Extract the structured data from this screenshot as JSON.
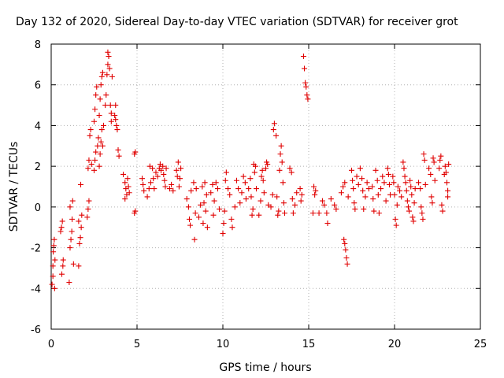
{
  "chart_data": {
    "type": "scatter",
    "title": "Day 132 of 2020, Sidereal Day-to-day VTEC variation (SDTVAR) for receiver grot",
    "xlabel": "GPS time / hours",
    "ylabel": "SDTVAR / TECUs",
    "xlim": [
      0,
      25
    ],
    "ylim": [
      -6,
      8
    ],
    "xticks": [
      "0",
      "5",
      "10",
      "15",
      "20",
      "25"
    ],
    "yticks": [
      "-6",
      "-4",
      "-2",
      "0",
      "2",
      "4",
      "6",
      "8"
    ],
    "grid": true,
    "marker": "+",
    "color": "#e00000",
    "series": [
      {
        "name": "SDTVAR",
        "points": [
          [
            0.05,
            -3.8
          ],
          [
            0.1,
            -3.4
          ],
          [
            0.1,
            -2.9
          ],
          [
            0.12,
            -2.2
          ],
          [
            0.15,
            -1.9
          ],
          [
            0.18,
            -1.6
          ],
          [
            0.2,
            -4.0
          ],
          [
            0.22,
            -2.6
          ],
          [
            0.55,
            -1.2
          ],
          [
            0.6,
            -1.0
          ],
          [
            0.65,
            -0.7
          ],
          [
            0.62,
            -3.3
          ],
          [
            0.68,
            -2.9
          ],
          [
            0.7,
            -2.6
          ],
          [
            1.05,
            -3.7
          ],
          [
            1.1,
            -2.0
          ],
          [
            1.15,
            -1.6
          ],
          [
            1.2,
            -1.2
          ],
          [
            1.22,
            -0.6
          ],
          [
            1.25,
            0.3
          ],
          [
            1.1,
            0.0
          ],
          [
            1.3,
            -2.8
          ],
          [
            1.6,
            -2.9
          ],
          [
            1.65,
            -1.8
          ],
          [
            1.7,
            -1.5
          ],
          [
            1.75,
            -1.0
          ],
          [
            1.72,
            1.1
          ],
          [
            1.6,
            -0.7
          ],
          [
            1.78,
            -0.4
          ],
          [
            2.1,
            -0.5
          ],
          [
            2.15,
            -0.1
          ],
          [
            2.2,
            0.3
          ],
          [
            2.15,
            1.9
          ],
          [
            2.2,
            2.3
          ],
          [
            2.25,
            3.5
          ],
          [
            2.3,
            3.8
          ],
          [
            2.35,
            2.1
          ],
          [
            2.5,
            1.8
          ],
          [
            2.55,
            2.3
          ],
          [
            2.6,
            2.7
          ],
          [
            2.5,
            4.2
          ],
          [
            2.55,
            4.8
          ],
          [
            2.6,
            5.5
          ],
          [
            2.65,
            5.9
          ],
          [
            2.7,
            3.0
          ],
          [
            2.75,
            3.4
          ],
          [
            2.8,
            2.0
          ],
          [
            2.85,
            2.6
          ],
          [
            2.9,
            3.2
          ],
          [
            2.95,
            3.8
          ],
          [
            2.8,
            4.5
          ],
          [
            2.85,
            5.3
          ],
          [
            2.9,
            6.0
          ],
          [
            2.95,
            6.4
          ],
          [
            3.0,
            6.6
          ],
          [
            3.0,
            3.0
          ],
          [
            3.05,
            4.0
          ],
          [
            3.15,
            5.0
          ],
          [
            3.2,
            5.5
          ],
          [
            3.25,
            6.5
          ],
          [
            3.3,
            7.0
          ],
          [
            3.35,
            7.4
          ],
          [
            3.3,
            7.6
          ],
          [
            3.4,
            6.8
          ],
          [
            3.45,
            5.0
          ],
          [
            3.5,
            4.6
          ],
          [
            3.55,
            6.4
          ],
          [
            3.5,
            4.2
          ],
          [
            3.7,
            4.5
          ],
          [
            3.75,
            5.0
          ],
          [
            3.8,
            4.0
          ],
          [
            3.85,
            3.8
          ],
          [
            3.9,
            2.8
          ],
          [
            3.95,
            2.5
          ],
          [
            3.75,
            4.3
          ],
          [
            4.2,
            1.6
          ],
          [
            4.3,
            1.2
          ],
          [
            4.35,
            0.9
          ],
          [
            4.4,
            0.6
          ],
          [
            4.45,
            1.4
          ],
          [
            4.5,
            1.0
          ],
          [
            4.55,
            0.7
          ],
          [
            4.3,
            0.4
          ],
          [
            4.85,
            2.6
          ],
          [
            4.9,
            2.7
          ],
          [
            4.85,
            -0.3
          ],
          [
            4.9,
            -0.2
          ],
          [
            5.3,
            1.4
          ],
          [
            5.35,
            1.1
          ],
          [
            5.4,
            0.8
          ],
          [
            5.6,
            0.5
          ],
          [
            5.7,
            0.9
          ],
          [
            5.8,
            1.2
          ],
          [
            5.75,
            2.0
          ],
          [
            5.9,
            1.9
          ],
          [
            5.95,
            1.4
          ],
          [
            6.0,
            0.9
          ],
          [
            6.1,
            1.7
          ],
          [
            6.2,
            1.5
          ],
          [
            6.3,
            1.9
          ],
          [
            6.35,
            2.1
          ],
          [
            6.4,
            1.8
          ],
          [
            6.5,
            2.0
          ],
          [
            6.55,
            1.6
          ],
          [
            6.6,
            1.3
          ],
          [
            6.65,
            1.0
          ],
          [
            6.7,
            1.9
          ],
          [
            6.9,
            0.9
          ],
          [
            7.0,
            1.1
          ],
          [
            7.1,
            0.8
          ],
          [
            7.3,
            1.8
          ],
          [
            7.35,
            1.5
          ],
          [
            7.4,
            2.2
          ],
          [
            7.45,
            1.0
          ],
          [
            7.5,
            1.4
          ],
          [
            7.55,
            1.9
          ],
          [
            7.9,
            0.4
          ],
          [
            8.0,
            0.0
          ],
          [
            8.05,
            -0.6
          ],
          [
            8.1,
            -0.9
          ],
          [
            8.15,
            0.8
          ],
          [
            8.3,
            1.2
          ],
          [
            8.35,
            -1.6
          ],
          [
            8.4,
            -0.3
          ],
          [
            8.45,
            0.9
          ],
          [
            8.6,
            -0.5
          ],
          [
            8.7,
            0.1
          ],
          [
            8.8,
            1.0
          ],
          [
            8.85,
            -0.8
          ],
          [
            8.9,
            0.2
          ],
          [
            8.95,
            1.2
          ],
          [
            9.0,
            -0.2
          ],
          [
            9.05,
            0.6
          ],
          [
            9.1,
            -1.0
          ],
          [
            9.3,
            0.7
          ],
          [
            9.4,
            1.1
          ],
          [
            9.45,
            -0.4
          ],
          [
            9.5,
            0.3
          ],
          [
            9.6,
            1.2
          ],
          [
            9.7,
            0.9
          ],
          [
            9.8,
            -0.1
          ],
          [
            10.0,
            -1.3
          ],
          [
            10.05,
            -0.8
          ],
          [
            10.1,
            -0.2
          ],
          [
            10.15,
            1.3
          ],
          [
            10.2,
            1.7
          ],
          [
            10.3,
            0.9
          ],
          [
            10.4,
            0.6
          ],
          [
            10.5,
            -0.6
          ],
          [
            10.55,
            -1.0
          ],
          [
            10.7,
            0.0
          ],
          [
            10.8,
            1.3
          ],
          [
            10.9,
            0.9
          ],
          [
            11.0,
            0.2
          ],
          [
            11.1,
            0.7
          ],
          [
            11.2,
            1.5
          ],
          [
            11.3,
            1.2
          ],
          [
            11.35,
            0.4
          ],
          [
            11.5,
            0.9
          ],
          [
            11.6,
            1.4
          ],
          [
            11.65,
            0.5
          ],
          [
            11.7,
            -0.4
          ],
          [
            11.75,
            -0.1
          ],
          [
            11.8,
            2.1
          ],
          [
            11.85,
            1.7
          ],
          [
            11.9,
            2.0
          ],
          [
            11.95,
            0.9
          ],
          [
            12.1,
            -0.4
          ],
          [
            12.2,
            0.3
          ],
          [
            12.25,
            1.5
          ],
          [
            12.3,
            1.8
          ],
          [
            12.35,
            1.3
          ],
          [
            12.4,
            0.7
          ],
          [
            12.5,
            1.9
          ],
          [
            12.55,
            2.2
          ],
          [
            12.6,
            2.1
          ],
          [
            12.65,
            0.1
          ],
          [
            12.8,
            0.0
          ],
          [
            12.9,
            0.6
          ],
          [
            12.95,
            3.8
          ],
          [
            13.0,
            4.1
          ],
          [
            13.1,
            3.5
          ],
          [
            13.15,
            0.5
          ],
          [
            13.2,
            -0.4
          ],
          [
            13.25,
            -0.2
          ],
          [
            13.3,
            1.8
          ],
          [
            13.35,
            2.6
          ],
          [
            13.4,
            3.0
          ],
          [
            13.45,
            2.2
          ],
          [
            13.5,
            1.2
          ],
          [
            13.55,
            0.2
          ],
          [
            13.6,
            -0.3
          ],
          [
            13.9,
            1.9
          ],
          [
            14.0,
            1.7
          ],
          [
            14.05,
            0.4
          ],
          [
            14.1,
            -0.3
          ],
          [
            14.2,
            0.1
          ],
          [
            14.3,
            0.7
          ],
          [
            14.5,
            0.9
          ],
          [
            14.55,
            0.3
          ],
          [
            14.6,
            0.6
          ],
          [
            14.7,
            7.4
          ],
          [
            14.75,
            6.8
          ],
          [
            14.8,
            6.1
          ],
          [
            14.85,
            5.9
          ],
          [
            14.9,
            5.5
          ],
          [
            14.95,
            5.3
          ],
          [
            15.3,
            1.0
          ],
          [
            15.35,
            0.6
          ],
          [
            15.4,
            0.8
          ],
          [
            15.25,
            -0.3
          ],
          [
            15.6,
            -0.3
          ],
          [
            15.8,
            0.3
          ],
          [
            15.9,
            0.1
          ],
          [
            16.05,
            -0.3
          ],
          [
            16.1,
            -0.8
          ],
          [
            16.3,
            0.4
          ],
          [
            16.5,
            0.1
          ],
          [
            16.6,
            -0.1
          ],
          [
            16.9,
            0.7
          ],
          [
            17.0,
            1.0
          ],
          [
            17.1,
            1.2
          ],
          [
            17.05,
            -1.6
          ],
          [
            17.1,
            -1.8
          ],
          [
            17.15,
            -2.1
          ],
          [
            17.2,
            -2.5
          ],
          [
            17.25,
            -2.8
          ],
          [
            17.3,
            0.5
          ],
          [
            17.5,
            1.8
          ],
          [
            17.55,
            1.3
          ],
          [
            17.6,
            0.9
          ],
          [
            17.65,
            0.2
          ],
          [
            17.7,
            -0.1
          ],
          [
            17.8,
            1.5
          ],
          [
            17.9,
            1.1
          ],
          [
            18.0,
            1.9
          ],
          [
            18.1,
            1.4
          ],
          [
            18.15,
            0.8
          ],
          [
            18.2,
            -0.1
          ],
          [
            18.3,
            0.5
          ],
          [
            18.4,
            1.2
          ],
          [
            18.5,
            0.9
          ],
          [
            18.7,
            1.0
          ],
          [
            18.75,
            0.4
          ],
          [
            18.8,
            -0.2
          ],
          [
            18.9,
            1.8
          ],
          [
            19.0,
            1.3
          ],
          [
            19.05,
            0.6
          ],
          [
            19.1,
            -0.3
          ],
          [
            19.2,
            0.9
          ],
          [
            19.3,
            1.5
          ],
          [
            19.4,
            1.2
          ],
          [
            19.5,
            0.3
          ],
          [
            19.6,
            1.9
          ],
          [
            19.65,
            1.6
          ],
          [
            19.7,
            1.1
          ],
          [
            19.75,
            0.6
          ],
          [
            19.9,
            1.5
          ],
          [
            19.95,
            1.2
          ],
          [
            20.0,
            0.6
          ],
          [
            20.05,
            -0.6
          ],
          [
            20.1,
            -0.9
          ],
          [
            20.15,
            0.1
          ],
          [
            20.2,
            1.0
          ],
          [
            20.3,
            0.8
          ],
          [
            20.4,
            0.5
          ],
          [
            20.5,
            2.2
          ],
          [
            20.55,
            1.9
          ],
          [
            20.6,
            1.5
          ],
          [
            20.65,
            1.2
          ],
          [
            20.7,
            0.8
          ],
          [
            20.75,
            0.3
          ],
          [
            20.8,
            0.0
          ],
          [
            20.85,
            -0.2
          ],
          [
            20.9,
            1.3
          ],
          [
            20.95,
            1.0
          ],
          [
            21.0,
            0.6
          ],
          [
            21.05,
            -0.5
          ],
          [
            21.1,
            -0.7
          ],
          [
            21.15,
            0.2
          ],
          [
            21.2,
            0.9
          ],
          [
            21.4,
            1.2
          ],
          [
            21.5,
            0.9
          ],
          [
            21.55,
            0.0
          ],
          [
            21.6,
            -0.3
          ],
          [
            21.65,
            -0.6
          ],
          [
            21.7,
            2.6
          ],
          [
            21.75,
            2.3
          ],
          [
            21.8,
            1.1
          ],
          [
            22.0,
            1.9
          ],
          [
            22.1,
            1.6
          ],
          [
            22.15,
            0.5
          ],
          [
            22.2,
            0.2
          ],
          [
            22.25,
            2.4
          ],
          [
            22.3,
            2.2
          ],
          [
            22.35,
            1.3
          ],
          [
            22.6,
            1.9
          ],
          [
            22.65,
            2.3
          ],
          [
            22.7,
            2.5
          ],
          [
            22.75,
            0.1
          ],
          [
            22.8,
            -0.2
          ],
          [
            22.9,
            1.6
          ],
          [
            22.95,
            2.0
          ],
          [
            23.0,
            1.7
          ],
          [
            23.05,
            1.2
          ],
          [
            23.1,
            0.8
          ],
          [
            23.15,
            2.1
          ],
          [
            23.1,
            0.5
          ]
        ]
      }
    ]
  }
}
